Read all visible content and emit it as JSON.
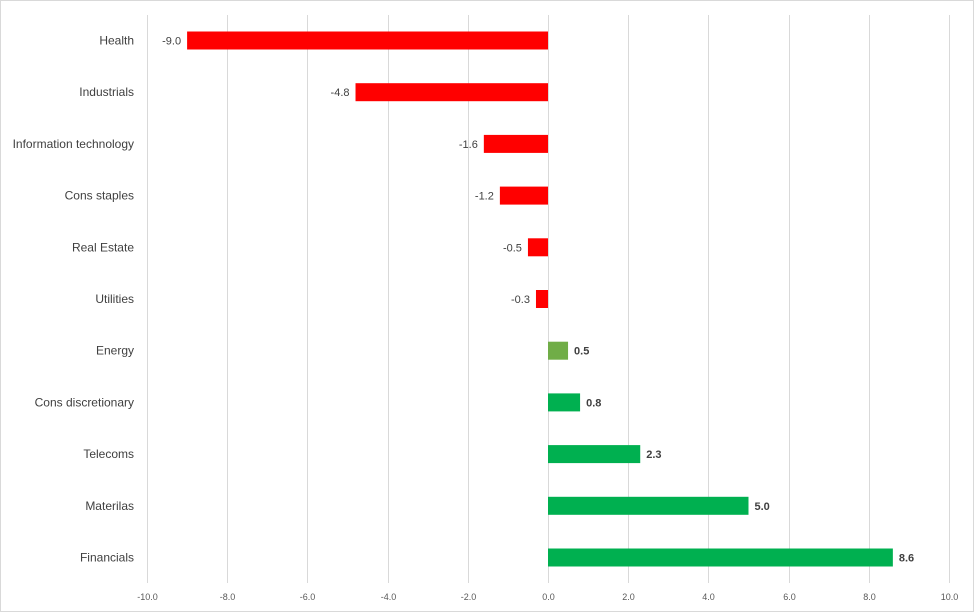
{
  "chart_data": {
    "type": "bar",
    "orientation": "horizontal",
    "title": "",
    "xlabel": "",
    "ylabel": "",
    "xlim": [
      -10,
      10
    ],
    "ticks": [
      "-10.0",
      "-8.0",
      "-6.0",
      "-4.0",
      "-2.0",
      "0.0",
      "2.0",
      "4.0",
      "6.0",
      "8.0",
      "10.0"
    ],
    "grid": "vertical",
    "legend": "none",
    "categories": [
      "Health",
      "Industrials",
      "Information technology",
      "Cons staples",
      "Real Estate",
      "Utilities",
      "Energy",
      "Cons discretionary",
      "Telecoms",
      "Materilas",
      "Financials"
    ],
    "values": [
      -9.0,
      -4.8,
      -1.6,
      -1.2,
      -0.5,
      -0.3,
      0.5,
      0.8,
      2.3,
      5.0,
      8.6
    ],
    "labels": [
      "-9.0",
      "-4.8",
      "-1.6",
      "-1.2",
      "-0.5",
      "-0.3",
      "0.5",
      "0.8",
      "2.3",
      "5.0",
      "8.6"
    ],
    "colors": [
      "#ff0000",
      "#ff0000",
      "#ff0000",
      "#ff0000",
      "#ff0000",
      "#ff0000",
      "#70ad47",
      "#00b050",
      "#00b050",
      "#00b050",
      "#00b050"
    ],
    "grid_color": "#d9d9d9",
    "label_color": "#404040"
  }
}
